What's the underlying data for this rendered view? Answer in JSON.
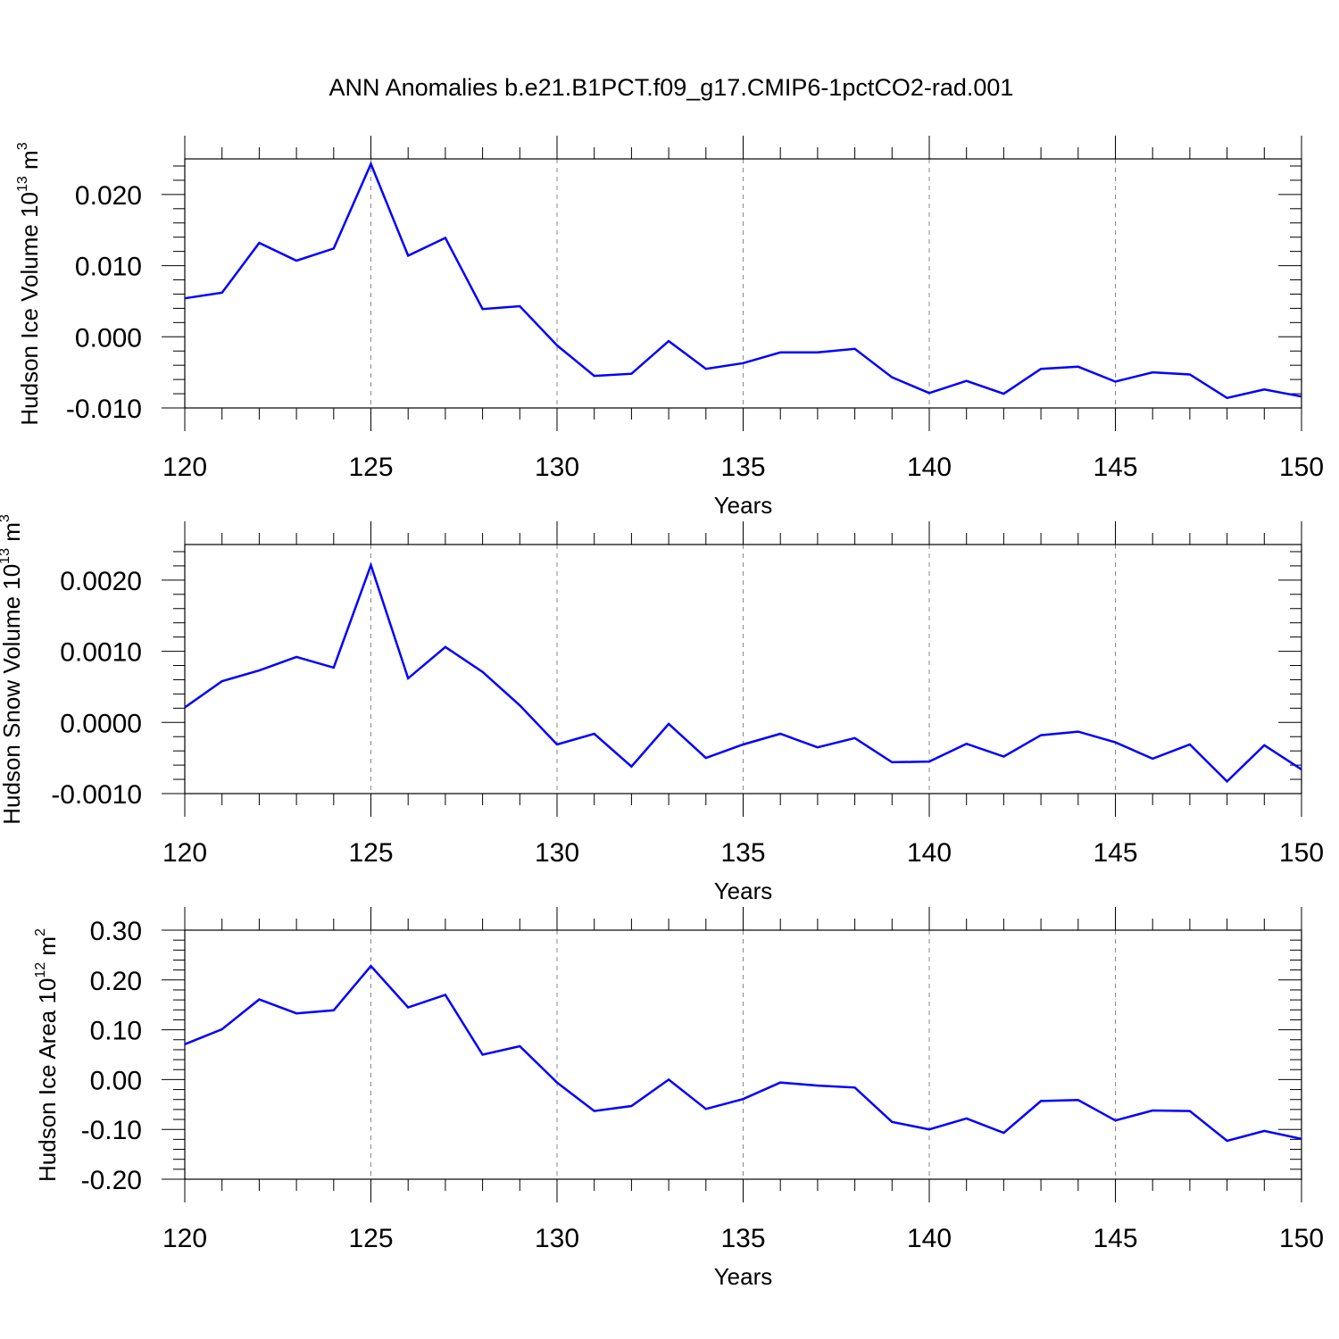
{
  "title": "ANN Anomalies b.e21.B1PCT.f09_g17.CMIP6-1pctCO2-rad.001",
  "colors": {
    "line": "#0000ff",
    "axis": "#000000",
    "grid": "#888888"
  },
  "chart_data": [
    {
      "type": "line",
      "ylabel_main": "Hudson Ice Volume 10",
      "ylabel_exp": "13",
      "ylabel_unit": "m",
      "ylabel_unit_exp": "3",
      "xlabel": "Years",
      "xlim": [
        120,
        150
      ],
      "ylim": [
        -0.01,
        0.025
      ],
      "xticks": [
        120,
        125,
        130,
        135,
        140,
        145,
        150
      ],
      "xtick_labels": [
        "120",
        "125",
        "130",
        "135",
        "140",
        "145",
        "150"
      ],
      "yticks": [
        -0.01,
        0.0,
        0.01,
        0.02
      ],
      "ytick_labels": [
        "-0.010",
        "0.000",
        "0.010",
        "0.020"
      ],
      "x": [
        120,
        121,
        122,
        123,
        124,
        125,
        126,
        127,
        128,
        129,
        130,
        131,
        132,
        133,
        134,
        135,
        136,
        137,
        138,
        139,
        140,
        141,
        142,
        143,
        144,
        145,
        146,
        147,
        148,
        149,
        150
      ],
      "values": [
        0.0054,
        0.0062,
        0.0132,
        0.0107,
        0.0124,
        0.0243,
        0.0114,
        0.0139,
        0.0039,
        0.0043,
        -0.0012,
        -0.0055,
        -0.0052,
        -0.0006,
        -0.0045,
        -0.0037,
        -0.0022,
        -0.0022,
        -0.0017,
        -0.0057,
        -0.0079,
        -0.0062,
        -0.008,
        -0.0045,
        -0.0042,
        -0.0063,
        -0.005,
        -0.0053,
        -0.0086,
        -0.0074,
        -0.0084
      ]
    },
    {
      "type": "line",
      "ylabel_main": "Hudson Snow Volume 10",
      "ylabel_exp": "13",
      "ylabel_unit": "m",
      "ylabel_unit_exp": "3",
      "xlabel": "Years",
      "xlim": [
        120,
        150
      ],
      "ylim": [
        -0.001,
        0.0025
      ],
      "xticks": [
        120,
        125,
        130,
        135,
        140,
        145,
        150
      ],
      "xtick_labels": [
        "120",
        "125",
        "130",
        "135",
        "140",
        "145",
        "150"
      ],
      "yticks": [
        -0.001,
        0.0,
        0.001,
        0.002
      ],
      "ytick_labels": [
        "-0.0010",
        "0.0000",
        "0.0010",
        "0.0020"
      ],
      "x": [
        120,
        121,
        122,
        123,
        124,
        125,
        126,
        127,
        128,
        129,
        130,
        131,
        132,
        133,
        134,
        135,
        136,
        137,
        138,
        139,
        140,
        141,
        142,
        143,
        144,
        145,
        146,
        147,
        148,
        149,
        150
      ],
      "values": [
        0.00021,
        0.00058,
        0.00073,
        0.00092,
        0.00077,
        0.00221,
        0.00062,
        0.00106,
        0.00071,
        0.00024,
        -0.00031,
        -0.00016,
        -0.00062,
        -2e-05,
        -0.0005,
        -0.00031,
        -0.00016,
        -0.00035,
        -0.00022,
        -0.00056,
        -0.00055,
        -0.0003,
        -0.00048,
        -0.00018,
        -0.00013,
        -0.00028,
        -0.00051,
        -0.00031,
        -0.00083,
        -0.00032,
        -0.00066
      ]
    },
    {
      "type": "line",
      "ylabel_main": "Hudson Ice Area 10",
      "ylabel_exp": "12",
      "ylabel_unit": "m",
      "ylabel_unit_exp": "2",
      "xlabel": "Years",
      "xlim": [
        120,
        150
      ],
      "ylim": [
        -0.2,
        0.3
      ],
      "xticks": [
        120,
        125,
        130,
        135,
        140,
        145,
        150
      ],
      "xtick_labels": [
        "120",
        "125",
        "130",
        "135",
        "140",
        "145",
        "150"
      ],
      "yticks": [
        -0.2,
        -0.1,
        0.0,
        0.1,
        0.2,
        0.3
      ],
      "ytick_labels": [
        "-0.20",
        "-0.10",
        "0.00",
        "0.10",
        "0.20",
        "0.30"
      ],
      "x": [
        120,
        121,
        122,
        123,
        124,
        125,
        126,
        127,
        128,
        129,
        130,
        131,
        132,
        133,
        134,
        135,
        136,
        137,
        138,
        139,
        140,
        141,
        142,
        143,
        144,
        145,
        146,
        147,
        148,
        149,
        150
      ],
      "values": [
        0.071,
        0.101,
        0.161,
        0.133,
        0.139,
        0.228,
        0.145,
        0.17,
        0.05,
        0.067,
        -0.006,
        -0.063,
        -0.053,
        0.0,
        -0.059,
        -0.039,
        -0.006,
        -0.012,
        -0.016,
        -0.085,
        -0.1,
        -0.078,
        -0.107,
        -0.043,
        -0.041,
        -0.082,
        -0.062,
        -0.063,
        -0.123,
        -0.103,
        -0.119
      ]
    }
  ]
}
